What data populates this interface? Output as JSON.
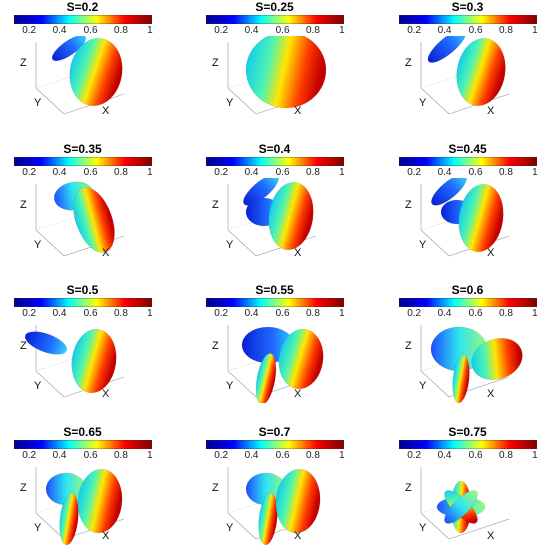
{
  "figure": {
    "panels": [
      {
        "title": "S=0.2"
      },
      {
        "title": "S=0.25"
      },
      {
        "title": "S=0.3"
      },
      {
        "title": "S=0.35"
      },
      {
        "title": "S=0.4"
      },
      {
        "title": "S=0.45"
      },
      {
        "title": "S=0.5"
      },
      {
        "title": "S=0.55"
      },
      {
        "title": "S=0.6"
      },
      {
        "title": "S=0.65"
      },
      {
        "title": "S=0.7"
      },
      {
        "title": "S=0.75"
      }
    ],
    "colorbar": {
      "ticks": [
        "0.2",
        "0.4",
        "0.6",
        "0.8",
        "1"
      ],
      "colormap": "jet",
      "stops": [
        "#00008f",
        "#0000ff",
        "#00ffff",
        "#ffff00",
        "#ff0000",
        "#7f0000"
      ]
    },
    "axes": {
      "z": "Z",
      "y": "Y",
      "x": "X"
    }
  }
}
